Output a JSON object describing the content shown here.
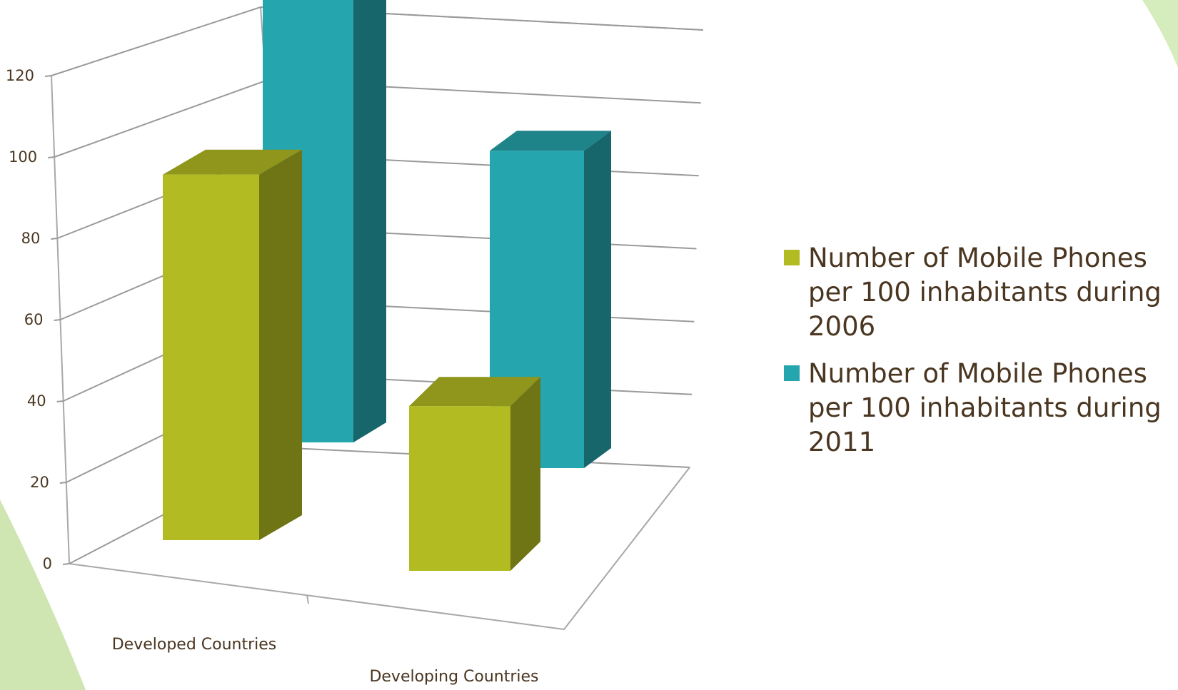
{
  "chart_data": {
    "type": "bar",
    "categories": [
      "Developed Countries",
      "Developing Countries"
    ],
    "series": [
      {
        "name": "Number of Mobile Phones per 100 inhabitants during 2006",
        "values": [
          91,
          41
        ],
        "color": "#b3bb22"
      },
      {
        "name": "Number of Mobile Phones per 100 inhabitants during 2011",
        "values": [
          117,
          79
        ],
        "color": "#25a5ad"
      }
    ],
    "ylim": [
      0,
      120
    ],
    "yticks": [
      0,
      20,
      40,
      60,
      80,
      100,
      120
    ],
    "grid": true,
    "legend_position": "right",
    "three_d": true
  }
}
